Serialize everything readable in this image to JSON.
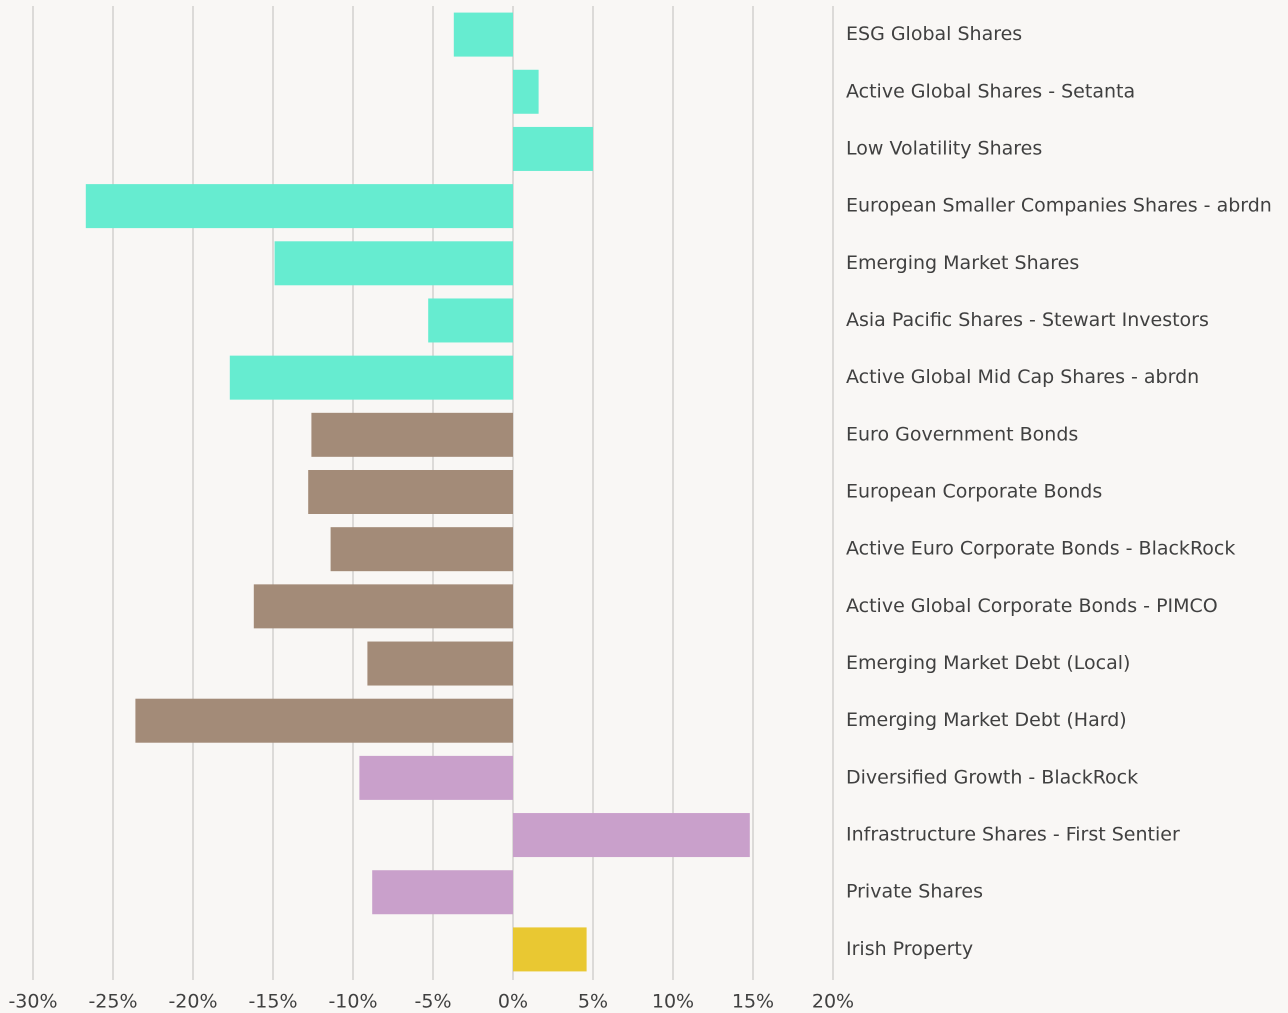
{
  "chart_data": {
    "type": "barh",
    "categories": [
      "ESG Global Shares",
      "Active Global Shares - Setanta",
      "Low Volatility Shares",
      "European Smaller Companies Shares - abrdn",
      "Emerging Market Shares",
      "Asia Pacific Shares - Stewart Investors",
      "Active Global Mid Cap Shares - abrdn",
      "Euro Government Bonds",
      "European Corporate Bonds",
      "Active Euro Corporate Bonds - BlackRock",
      "Active Global Corporate Bonds - PIMCO",
      "Emerging Market Debt (Local)",
      "Emerging Market Debt (Hard)",
      "Diversified Growth - BlackRock",
      "Infrastructure Shares - First Sentier",
      "Private Shares",
      "Irish Property"
    ],
    "values": [
      -3.7,
      1.6,
      5.0,
      -26.7,
      -14.9,
      -5.3,
      -17.7,
      -12.6,
      -12.8,
      -11.4,
      -16.2,
      -9.1,
      -23.6,
      -9.6,
      14.8,
      -8.8,
      4.6
    ],
    "colors": [
      "#66ecd0",
      "#66ecd0",
      "#66ecd0",
      "#66ecd0",
      "#66ecd0",
      "#66ecd0",
      "#66ecd0",
      "#a38b78",
      "#a38b78",
      "#a38b78",
      "#a38b78",
      "#a38b78",
      "#a38b78",
      "#c9a0cb",
      "#c9a0cb",
      "#c9a0cb",
      "#e9c832"
    ],
    "xlim": [
      -30,
      20
    ],
    "xticks": [
      {
        "value": -30,
        "label": "-30%"
      },
      {
        "value": -25,
        "label": "-25%"
      },
      {
        "value": -20,
        "label": "-20%"
      },
      {
        "value": -15,
        "label": "-15%"
      },
      {
        "value": -10,
        "label": "-10%"
      },
      {
        "value": -5,
        "label": "-5%"
      },
      {
        "value": 0,
        "label": "0%"
      },
      {
        "value": 5,
        "label": "5%"
      },
      {
        "value": 10,
        "label": "10%"
      },
      {
        "value": 15,
        "label": "15%"
      },
      {
        "value": 20,
        "label": "20%"
      }
    ],
    "grid": true
  }
}
